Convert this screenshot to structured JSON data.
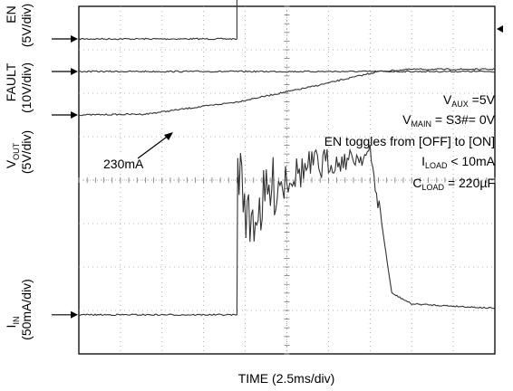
{
  "chart_data": {
    "type": "line",
    "xlabel": "TIME (2.5ms/div)",
    "divisions": {
      "x": 10,
      "y": 8
    },
    "time_per_div_ms": 2.5,
    "channels": [
      {
        "name": "EN",
        "scale_label": "(5V/div)",
        "scale_per_div": "5V/div",
        "x_ms": [
          0,
          9.5,
          9.5,
          25
        ],
        "y_div": [
          7.25,
          7.25,
          8.25,
          8.25
        ]
      },
      {
        "name": "FAULT",
        "scale_label": "(10V/div)",
        "scale_per_div": "10V/div",
        "x_ms": [
          0,
          25
        ],
        "y_div": [
          6.5,
          6.5
        ]
      },
      {
        "name": "V",
        "name_sub": "OUT",
        "scale_label": "(5V/div)",
        "scale_per_div": "5V/div",
        "x_ms": [
          0,
          4,
          9.5,
          14,
          18,
          20,
          25
        ],
        "y_div": [
          5.5,
          5.52,
          5.8,
          6.15,
          6.5,
          6.55,
          6.55
        ]
      },
      {
        "name": "I",
        "name_sub": "IN",
        "scale_label": "(50mA/div)",
        "scale_per_div": "50mA/div",
        "x_ms": [
          0,
          9.5,
          9.55,
          10.2,
          12,
          14,
          15,
          17.5,
          18.2,
          18.8,
          20,
          25
        ],
        "y_div": [
          0.9,
          0.9,
          4.5,
          3.0,
          4.0,
          4.3,
          4.35,
          4.6,
          3.0,
          1.4,
          1.15,
          1.05
        ]
      }
    ],
    "annotations": {
      "current_callout": "230mA",
      "conditions": [
        {
          "main": "V",
          "sub": "AUX",
          "rest": " =5V"
        },
        {
          "main": "V",
          "sub": "MAIN",
          "rest": " = S3#= 0V"
        },
        {
          "main": "EN toggles from [OFF] to [ON]",
          "sub": "",
          "rest": ""
        },
        {
          "main": "I",
          "sub": "LOAD",
          "rest": " < 10mA"
        },
        {
          "main": "C",
          "sub": "LOAD",
          "rest": " = 220µF"
        }
      ]
    }
  }
}
